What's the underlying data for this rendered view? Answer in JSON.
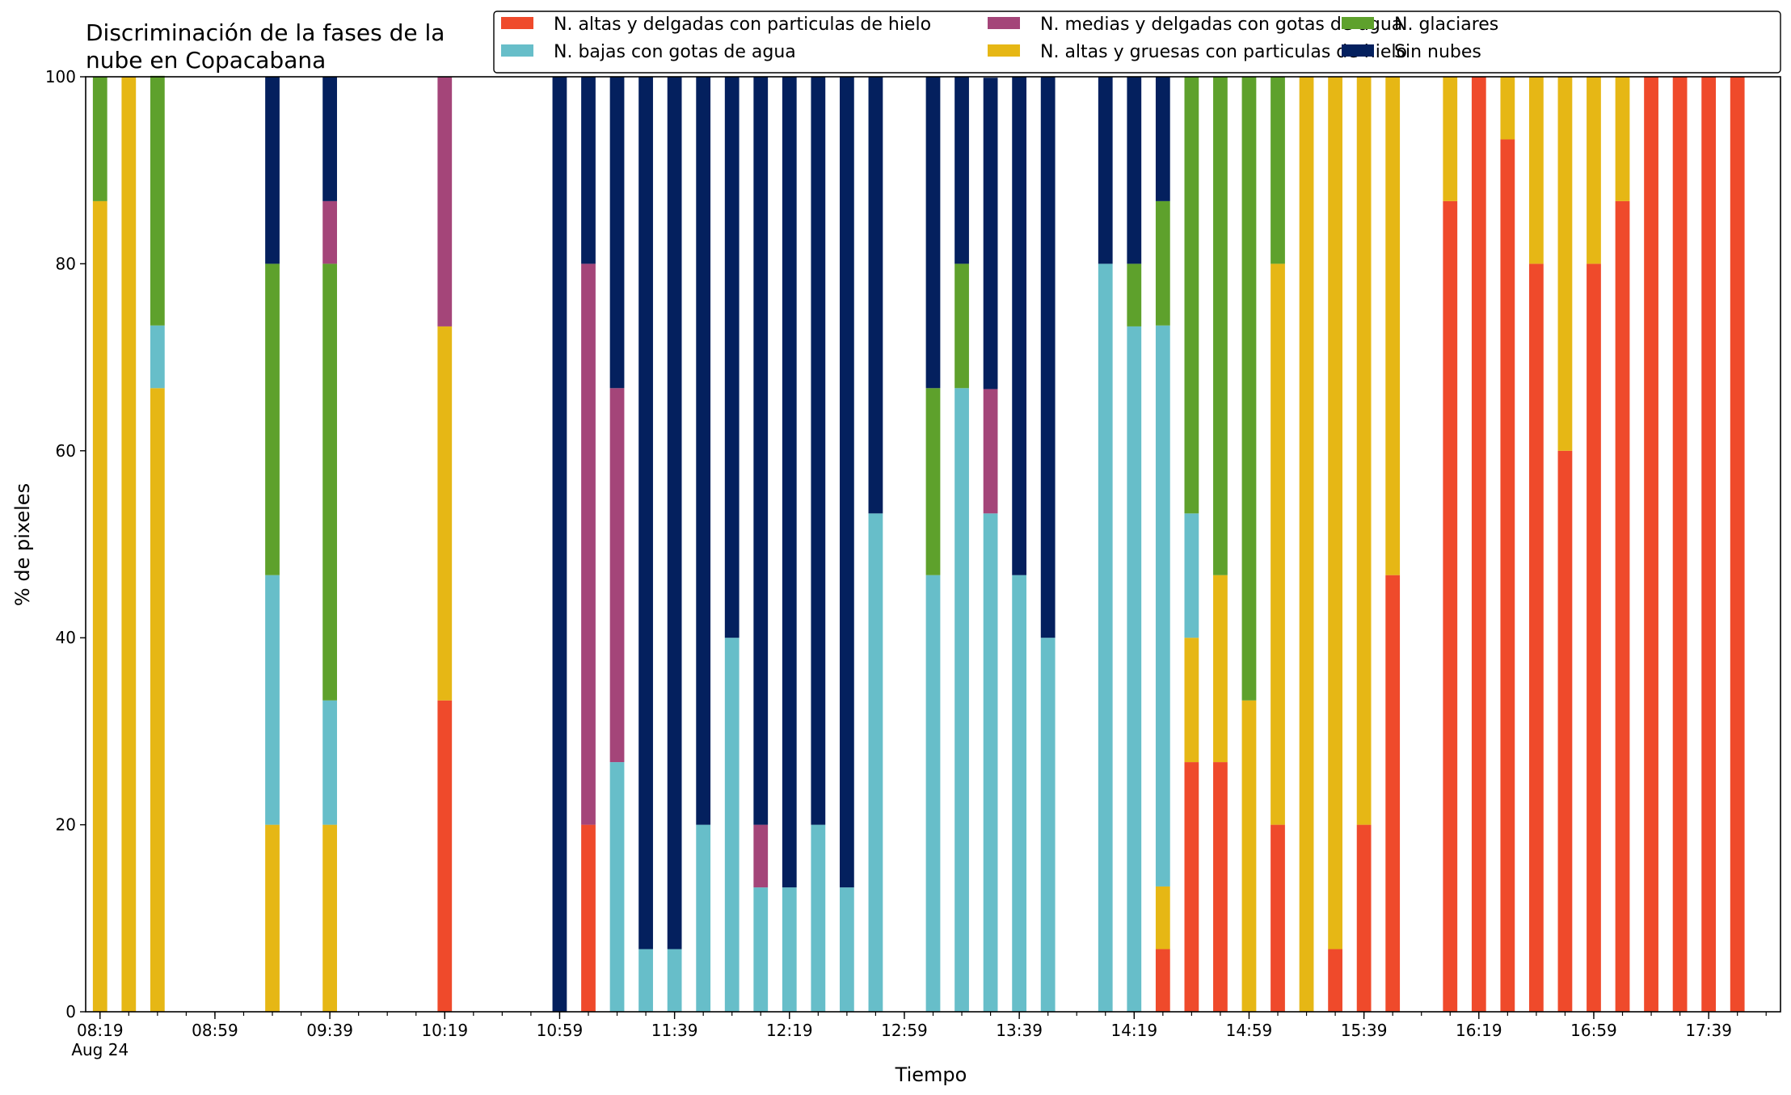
{
  "chart_data": {
    "type": "bar",
    "stacked": true,
    "title_line1": "Discriminación de la fases de la",
    "title_line2": "nube en Copacabana",
    "xlabel": "Tiempo",
    "ylabel": "% de pixeles",
    "ylim": [
      0,
      100
    ],
    "yticks": [
      0,
      20,
      40,
      60,
      80,
      100
    ],
    "xlim": [
      "08:14",
      "18:04"
    ],
    "x_major_ticks": [
      "08:19",
      "08:59",
      "09:39",
      "10:19",
      "10:59",
      "11:39",
      "12:19",
      "12:59",
      "13:39",
      "14:19",
      "14:59",
      "15:39",
      "16:19",
      "16:59",
      "17:39"
    ],
    "x_first_tick_sublabel": "Aug 24",
    "x_minor_tick_interval_minutes": 10,
    "bar_width_minutes": 5,
    "grid": false,
    "legend_position": "top-right",
    "series": [
      {
        "name": "N. altas y delgadas con particulas de hielo",
        "color": "#ef4a2b",
        "key": "altas_delgadas"
      },
      {
        "name": "N. altas y gruesas con particulas de hielo",
        "color": "#e6b715",
        "key": "altas_gruesas"
      },
      {
        "name": "N. bajas con gotas de agua",
        "color": "#67bec9",
        "key": "bajas_agua"
      },
      {
        "name": "N. glaciares",
        "color": "#5ea12c",
        "key": "glaciares"
      },
      {
        "name": "N. medias y delgadas con gotas de agua",
        "color": "#a44579",
        "key": "medias_agua"
      },
      {
        "name": "Sin nubes",
        "color": "#04205e",
        "key": "sin_nubes"
      }
    ],
    "legend_order": [
      0,
      2,
      4,
      1,
      3,
      5
    ],
    "times": [
      "08:19",
      "08:29",
      "08:39",
      "09:19",
      "09:39",
      "10:19",
      "10:59",
      "11:09",
      "11:19",
      "11:29",
      "11:39",
      "11:49",
      "11:59",
      "12:09",
      "12:19",
      "12:29",
      "12:39",
      "12:49",
      "13:09",
      "13:19",
      "13:29",
      "13:39",
      "13:49",
      "14:09",
      "14:19",
      "14:29",
      "14:39",
      "14:49",
      "14:59",
      "15:09",
      "15:19",
      "15:29",
      "15:39",
      "15:49",
      "16:09",
      "16:19",
      "16:29",
      "16:39",
      "16:49",
      "16:59",
      "17:09",
      "17:19",
      "17:29",
      "17:39",
      "17:49"
    ],
    "values": {
      "altas_delgadas": [
        0,
        0,
        0,
        0,
        0,
        33.3,
        0,
        20,
        0,
        0,
        0,
        0,
        0,
        0,
        0,
        0,
        0,
        0,
        0,
        0,
        0,
        0,
        0,
        0,
        0,
        6.7,
        26.7,
        26.7,
        0,
        20,
        0,
        6.7,
        20,
        46.7,
        86.7,
        100,
        93.3,
        80,
        60,
        80,
        86.7,
        100,
        100,
        100,
        100
      ],
      "altas_gruesas": [
        86.7,
        100,
        66.7,
        20,
        20,
        40,
        0,
        0,
        0,
        0,
        0,
        0,
        0,
        0,
        0,
        0,
        0,
        0,
        0,
        0,
        0,
        0,
        0,
        0,
        0,
        6.7,
        13.3,
        20,
        33.3,
        60,
        100,
        93.3,
        80,
        53.3,
        13.3,
        0,
        6.7,
        20,
        40,
        20,
        13.3,
        0,
        0,
        0,
        0
      ],
      "bajas_agua": [
        0,
        0,
        6.7,
        26.7,
        13.3,
        0,
        0,
        0,
        26.7,
        6.7,
        6.7,
        20,
        40,
        13.3,
        13.3,
        20,
        13.3,
        53.3,
        46.7,
        66.7,
        53.3,
        46.7,
        40,
        80,
        73.3,
        60,
        13.3,
        0,
        0,
        0,
        0,
        0,
        0,
        0,
        0,
        0,
        0,
        0,
        0,
        0,
        0,
        0,
        0,
        0,
        0
      ],
      "glaciares": [
        13.3,
        0,
        26.7,
        33.3,
        46.7,
        0,
        0,
        0,
        0,
        0,
        0,
        0,
        0,
        0,
        0,
        0,
        0,
        0,
        20,
        13.3,
        0,
        0,
        0,
        0,
        6.7,
        13.3,
        46.7,
        53.3,
        66.7,
        20,
        0,
        0,
        0,
        0,
        0,
        0,
        0,
        0,
        0,
        0,
        0,
        0,
        0,
        0,
        0
      ],
      "medias_agua": [
        0,
        0,
        0,
        0,
        6.7,
        26.7,
        0,
        60,
        40,
        0,
        0,
        0,
        0,
        6.7,
        0,
        0,
        0,
        0,
        0,
        0,
        13.3,
        0,
        0,
        0,
        0,
        0,
        0,
        0,
        0,
        0,
        0,
        0,
        0,
        0,
        0,
        0,
        0,
        0,
        0,
        0,
        0,
        0,
        0,
        0,
        0
      ],
      "sin_nubes": [
        0,
        0,
        0,
        20,
        13.3,
        0,
        100,
        20,
        33.3,
        93.3,
        93.3,
        80,
        60,
        80,
        86.7,
        80,
        86.7,
        46.7,
        33.3,
        20,
        33.3,
        53.3,
        60,
        20,
        20,
        13.3,
        0,
        0,
        0,
        0,
        0,
        0,
        0,
        0,
        0,
        0,
        0,
        0,
        0,
        0,
        0,
        0,
        0,
        0,
        0
      ]
    }
  }
}
